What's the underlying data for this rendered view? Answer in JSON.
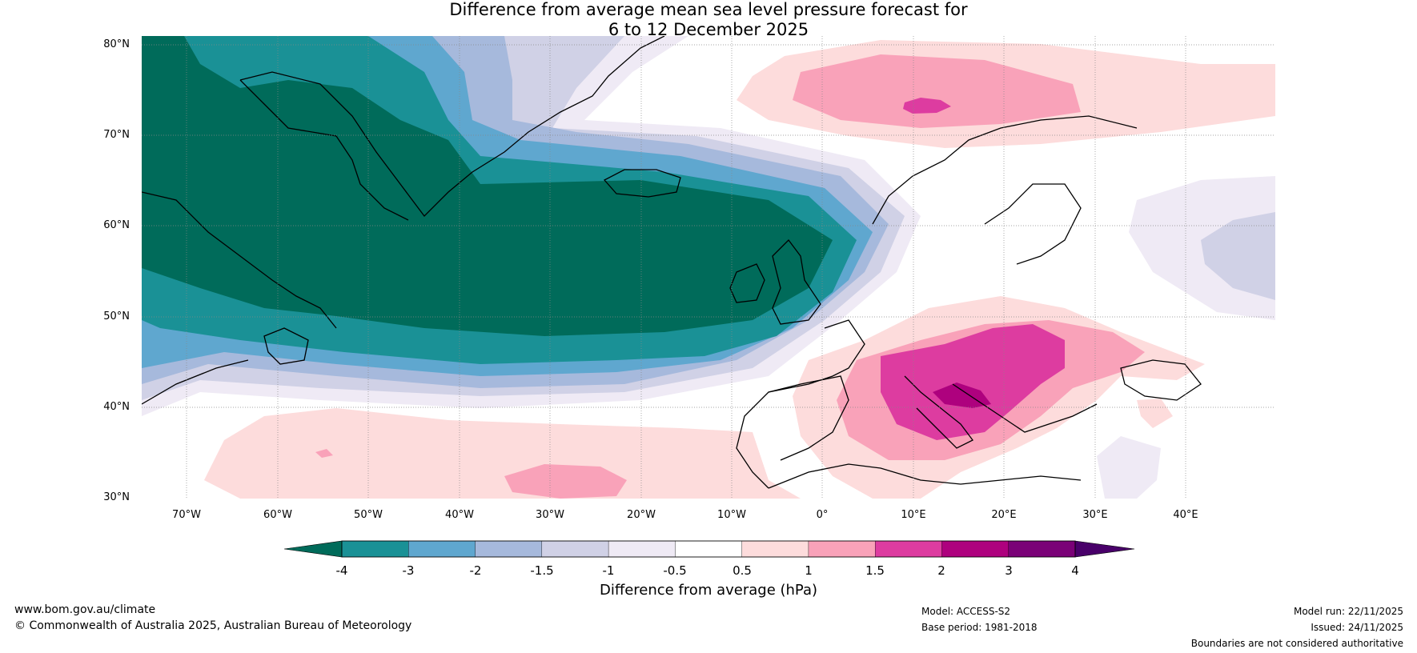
{
  "title": {
    "line1": "Difference from average mean sea level pressure forecast for",
    "line2": "6 to 12 December 2025"
  },
  "map": {
    "lat_labels": [
      "80°N",
      "70°N",
      "60°N",
      "50°N",
      "40°N",
      "30°N"
    ],
    "lon_labels": [
      "70°W",
      "60°W",
      "50°W",
      "40°W",
      "30°W",
      "20°W",
      "10°W",
      "0°",
      "10°E",
      "20°E",
      "30°E",
      "40°E"
    ],
    "extent": {
      "lon_min": -75,
      "lon_max": 50,
      "lat_min": 30,
      "lat_max": 81
    }
  },
  "colorbar": {
    "tick_labels": [
      "-4",
      "-3",
      "-2",
      "-1.5",
      "-1",
      "-0.5",
      "0.5",
      "1",
      "1.5",
      "2",
      "3",
      "4"
    ],
    "colors": [
      "#006b5a",
      "#1a9196",
      "#5fa7cf",
      "#a6b9dc",
      "#d0d1e6",
      "#efeaf5",
      "#ffffff",
      "#fddcdc",
      "#f9a2b9",
      "#dd3ca0",
      "#ae017e",
      "#7a0177",
      "#49006a"
    ],
    "title": "Difference from average (hPa)"
  },
  "footer": {
    "website": "www.bom.gov.au/climate",
    "copyright": "© Commonwealth of Australia 2025, Australian Bureau of Meteorology",
    "model": "Model: ACCESS-S2",
    "base_period": "Base period: 1981-2018",
    "model_run": "Model run: 22/11/2025",
    "issued": "Issued: 24/11/2025",
    "disclaimer": "Boundaries are not considered authoritative"
  }
}
